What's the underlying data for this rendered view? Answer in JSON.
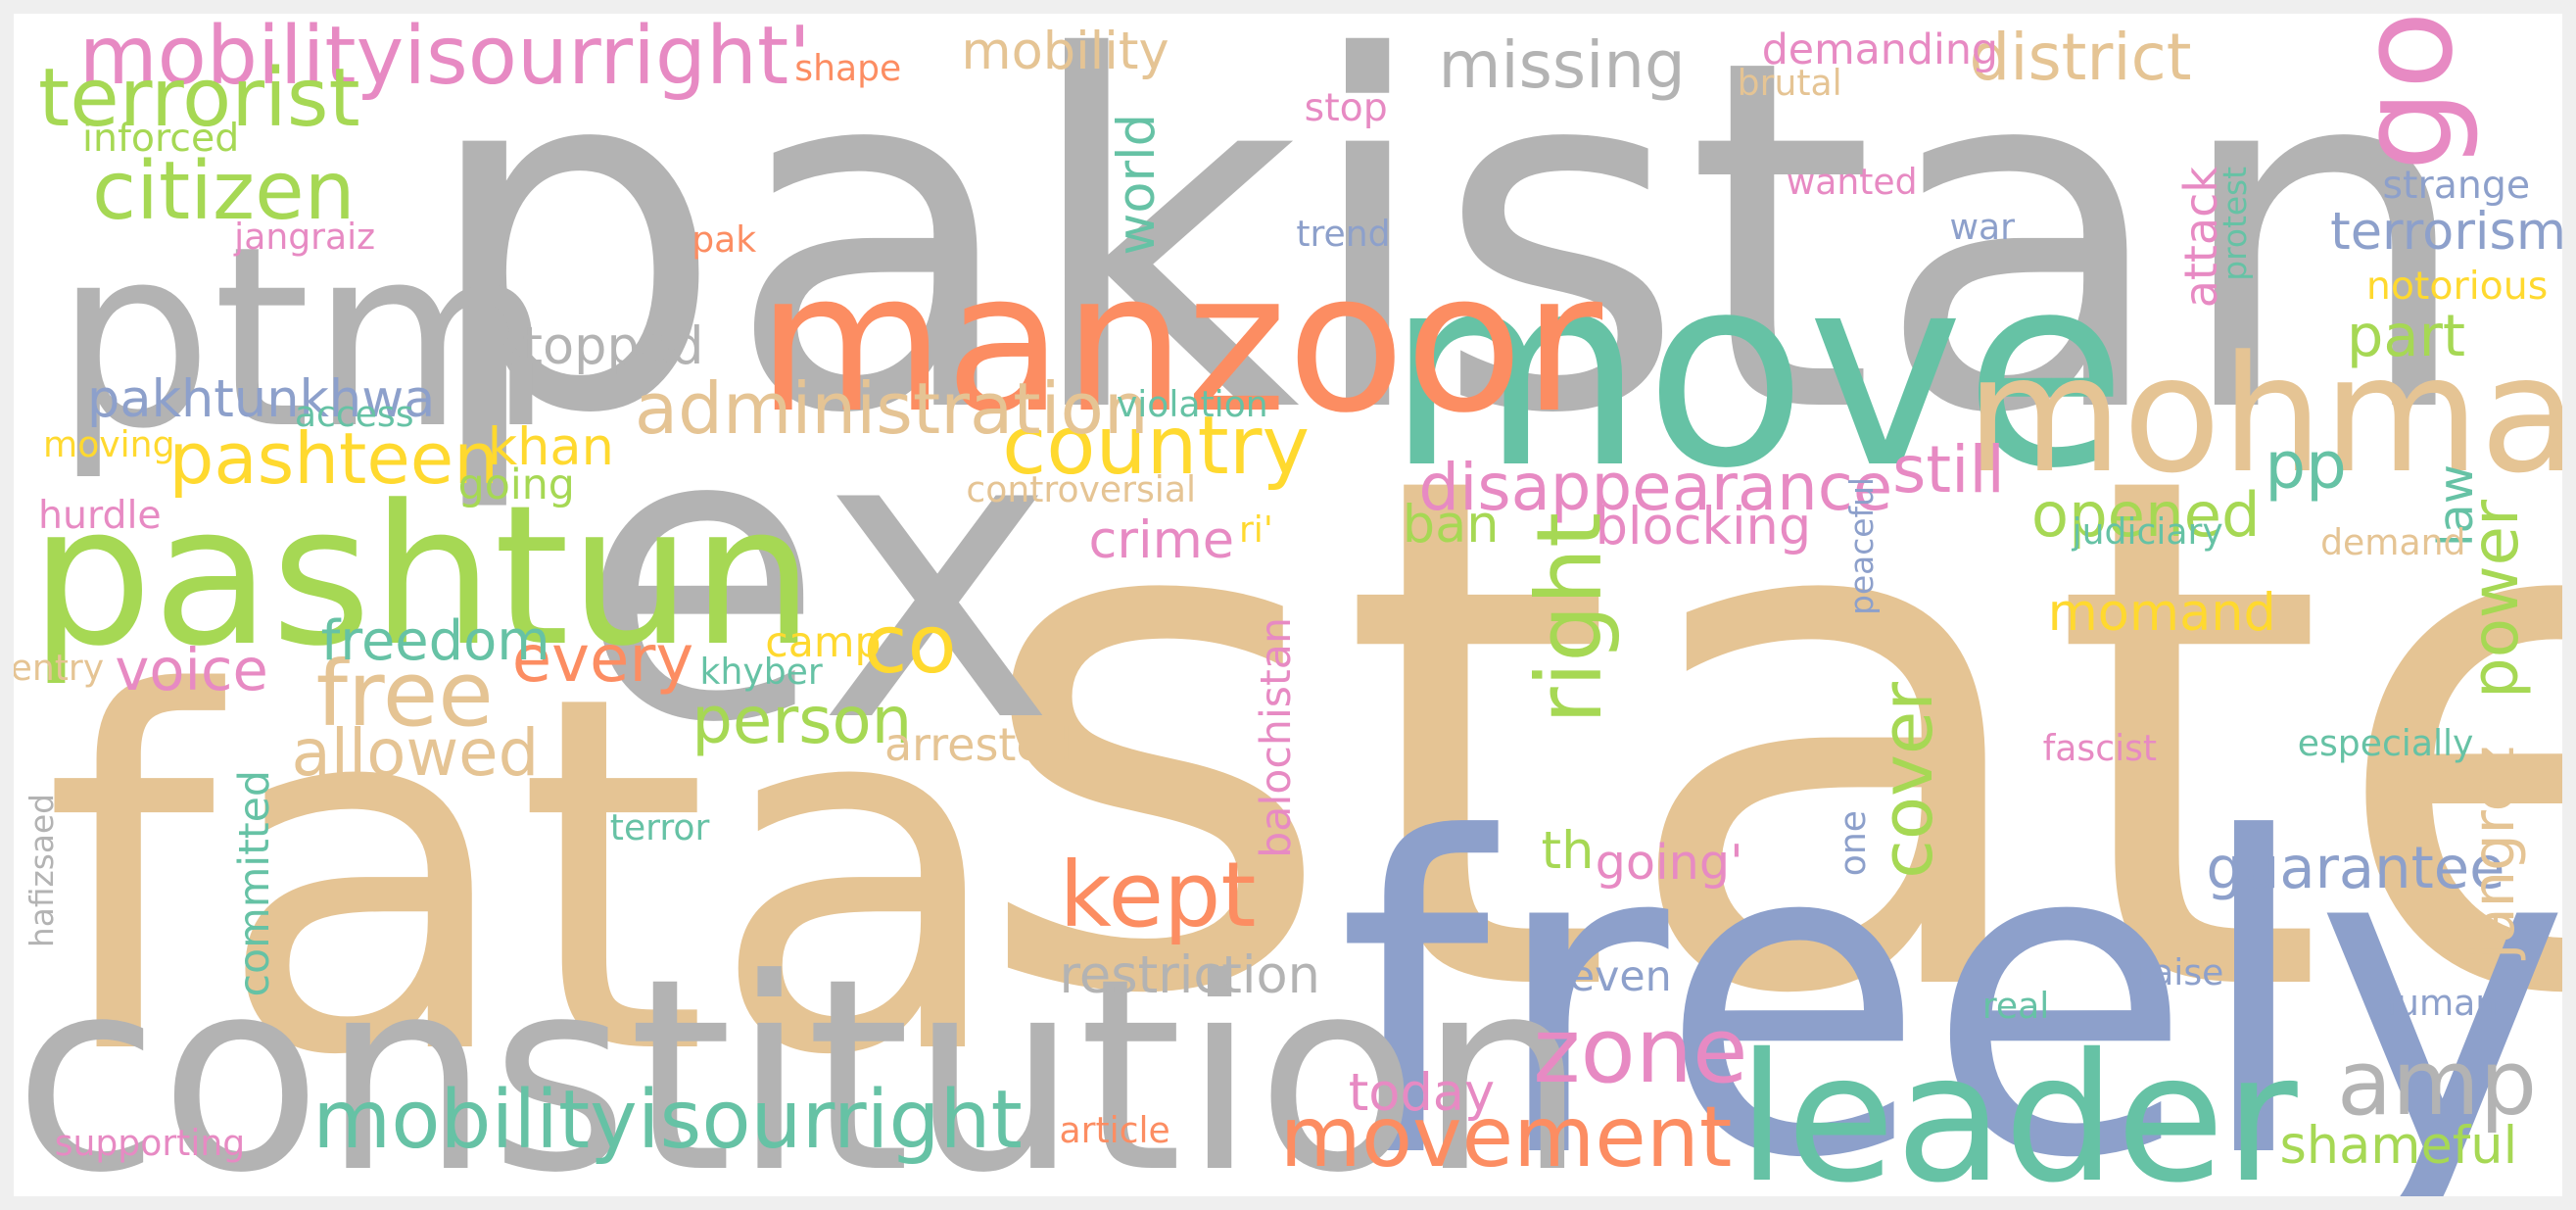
{
  "colors": {
    "gray": "#b3b3b3",
    "tan": "#e5c494",
    "teal": "#66c2a5",
    "orange": "#fc8d62",
    "blue": "#8da0cb",
    "pink": "#e78ac3",
    "green": "#a6d854",
    "yellow": "#ffd92f"
  },
  "words": [
    {
      "text": "pakistan",
      "color": "gray"
    },
    {
      "text": "state",
      "color": "tan"
    },
    {
      "text": "fata",
      "color": "tan"
    },
    {
      "text": "ex",
      "color": "gray"
    },
    {
      "text": "freely",
      "color": "blue"
    },
    {
      "text": "constitution",
      "color": "gray"
    },
    {
      "text": "move",
      "color": "teal"
    },
    {
      "text": "ptm",
      "color": "gray"
    },
    {
      "text": "manzoor",
      "color": "orange"
    },
    {
      "text": "pashtun",
      "color": "green"
    },
    {
      "text": "mohmand",
      "color": "tan"
    },
    {
      "text": "leader",
      "color": "teal"
    },
    {
      "text": "go",
      "color": "pink"
    },
    {
      "text": "mobilityisourright'",
      "color": "pink"
    },
    {
      "text": "terrorist",
      "color": "green"
    },
    {
      "text": "citizen",
      "color": "green"
    },
    {
      "text": "country",
      "color": "yellow"
    },
    {
      "text": "pashteen",
      "color": "yellow"
    },
    {
      "text": "administration",
      "color": "tan"
    },
    {
      "text": "mobilityisourright",
      "color": "teal"
    },
    {
      "text": "movement",
      "color": "orange"
    },
    {
      "text": "kept",
      "color": "orange"
    },
    {
      "text": "free",
      "color": "tan"
    },
    {
      "text": "disappearance",
      "color": "pink"
    },
    {
      "text": "zone",
      "color": "pink"
    },
    {
      "text": "right",
      "color": "green"
    },
    {
      "text": "amp",
      "color": "gray"
    },
    {
      "text": "missing",
      "color": "gray"
    },
    {
      "text": "district",
      "color": "tan"
    },
    {
      "text": "still",
      "color": "pink"
    },
    {
      "text": "allowed",
      "color": "tan"
    },
    {
      "text": "person",
      "color": "green"
    },
    {
      "text": "every",
      "color": "orange"
    },
    {
      "text": "co",
      "color": "yellow"
    },
    {
      "text": "freedom",
      "color": "teal"
    },
    {
      "text": "voice",
      "color": "pink"
    },
    {
      "text": "cover",
      "color": "green"
    },
    {
      "text": "power",
      "color": "green"
    },
    {
      "text": "guarantee",
      "color": "blue"
    },
    {
      "text": "jangrez",
      "color": "tan"
    },
    {
      "text": "restriction",
      "color": "gray"
    },
    {
      "text": "mobility",
      "color": "tan"
    },
    {
      "text": "stopped",
      "color": "gray"
    },
    {
      "text": "pakhtunkhwa",
      "color": "blue"
    },
    {
      "text": "world",
      "color": "teal"
    },
    {
      "text": "khan",
      "color": "yellow"
    },
    {
      "text": "blocking",
      "color": "pink"
    },
    {
      "text": "crime",
      "color": "pink"
    },
    {
      "text": "ban",
      "color": "green"
    },
    {
      "text": "opened",
      "color": "green"
    },
    {
      "text": "part",
      "color": "green"
    },
    {
      "text": "pp",
      "color": "teal"
    },
    {
      "text": "momand",
      "color": "yellow"
    },
    {
      "text": "terrorism",
      "color": "blue"
    },
    {
      "text": "today",
      "color": "pink"
    },
    {
      "text": "shameful",
      "color": "green"
    },
    {
      "text": "th",
      "color": "green"
    },
    {
      "text": "going'",
      "color": "pink"
    },
    {
      "text": "demanding",
      "color": "pink"
    },
    {
      "text": "attack",
      "color": "pink"
    },
    {
      "text": "law",
      "color": "teal"
    },
    {
      "text": "even",
      "color": "blue"
    },
    {
      "text": "arrested",
      "color": "tan"
    },
    {
      "text": "going",
      "color": "green"
    },
    {
      "text": "balochistan",
      "color": "pink"
    },
    {
      "text": "committed",
      "color": "teal"
    },
    {
      "text": "shape",
      "color": "orange"
    },
    {
      "text": "inforced",
      "color": "green"
    },
    {
      "text": "stop",
      "color": "pink"
    },
    {
      "text": "brutal",
      "color": "tan"
    },
    {
      "text": "wanted",
      "color": "pink"
    },
    {
      "text": "strange",
      "color": "blue"
    },
    {
      "text": "protest",
      "color": "teal"
    },
    {
      "text": "jangraiz",
      "color": "pink"
    },
    {
      "text": "pak",
      "color": "orange"
    },
    {
      "text": "trend",
      "color": "blue"
    },
    {
      "text": "war",
      "color": "blue"
    },
    {
      "text": "notorious",
      "color": "yellow"
    },
    {
      "text": "access",
      "color": "teal"
    },
    {
      "text": "violation",
      "color": "teal"
    },
    {
      "text": "moving",
      "color": "yellow"
    },
    {
      "text": "hurdle",
      "color": "pink"
    },
    {
      "text": "controversial",
      "color": "tan"
    },
    {
      "text": "ri'",
      "color": "yellow"
    },
    {
      "text": "peaceful",
      "color": "blue"
    },
    {
      "text": "judiciary",
      "color": "teal"
    },
    {
      "text": "demand",
      "color": "tan"
    },
    {
      "text": "camp",
      "color": "yellow"
    },
    {
      "text": "entry",
      "color": "tan"
    },
    {
      "text": "khyber",
      "color": "teal"
    },
    {
      "text": "fascist",
      "color": "pink"
    },
    {
      "text": "especially",
      "color": "teal"
    },
    {
      "text": "terror",
      "color": "teal"
    },
    {
      "text": "hafizsaed",
      "color": "gray"
    },
    {
      "text": "one",
      "color": "blue"
    },
    {
      "text": "raise",
      "color": "blue"
    },
    {
      "text": "real",
      "color": "teal"
    },
    {
      "text": "human",
      "color": "blue"
    },
    {
      "text": "supporting",
      "color": "pink"
    },
    {
      "text": "article",
      "color": "orange"
    }
  ]
}
